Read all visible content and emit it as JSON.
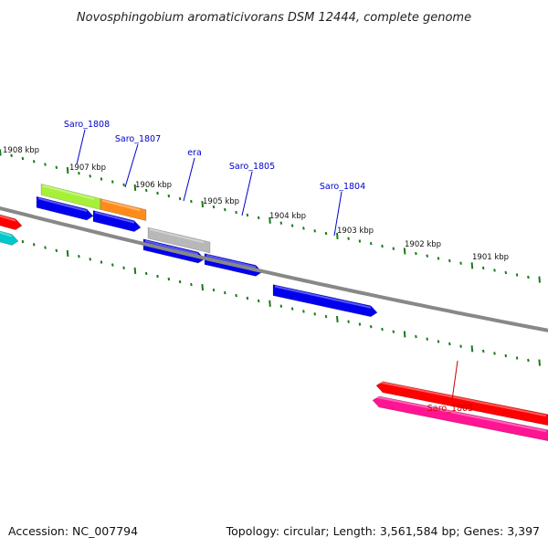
{
  "header": {
    "title": "Novosphingobium aromaticivorans DSM 12444, complete genome"
  },
  "footer": {
    "accession": "Accession: NC_007794",
    "summary": "Topology: circular; Length: 3,561,584 bp; Genes: 3,397"
  },
  "ruler": {
    "ticks": [
      {
        "label": "1908 kbp"
      },
      {
        "label": "1907 kbp"
      },
      {
        "label": "1906 kbp"
      },
      {
        "label": "1905 kbp"
      },
      {
        "label": "1904 kbp"
      },
      {
        "label": "1903 kbp"
      },
      {
        "label": "1902 kbp"
      },
      {
        "label": "1901 kbp"
      }
    ]
  },
  "gene_labels": [
    {
      "name": "Saro_1808",
      "color": "#0000cc"
    },
    {
      "name": "Saro_1807",
      "color": "#0000cc"
    },
    {
      "name": "era",
      "color": "#0000cc"
    },
    {
      "name": "Saro_1805",
      "color": "#0000cc"
    },
    {
      "name": "Saro_1804",
      "color": "#0000cc"
    },
    {
      "name": "Saro_1803",
      "color": "#cc0000"
    }
  ],
  "colors": {
    "backbone": "#888888",
    "tick": "#1a7a1a",
    "gene_blue": "#0000ee",
    "gene_red": "#ff0000",
    "gene_pink": "#ff1493",
    "gene_lime": "#a6f03a",
    "gene_orange": "#ff8c1a",
    "gene_gray": "#b8b8b8",
    "gene_cyan": "#00c8c8"
  }
}
